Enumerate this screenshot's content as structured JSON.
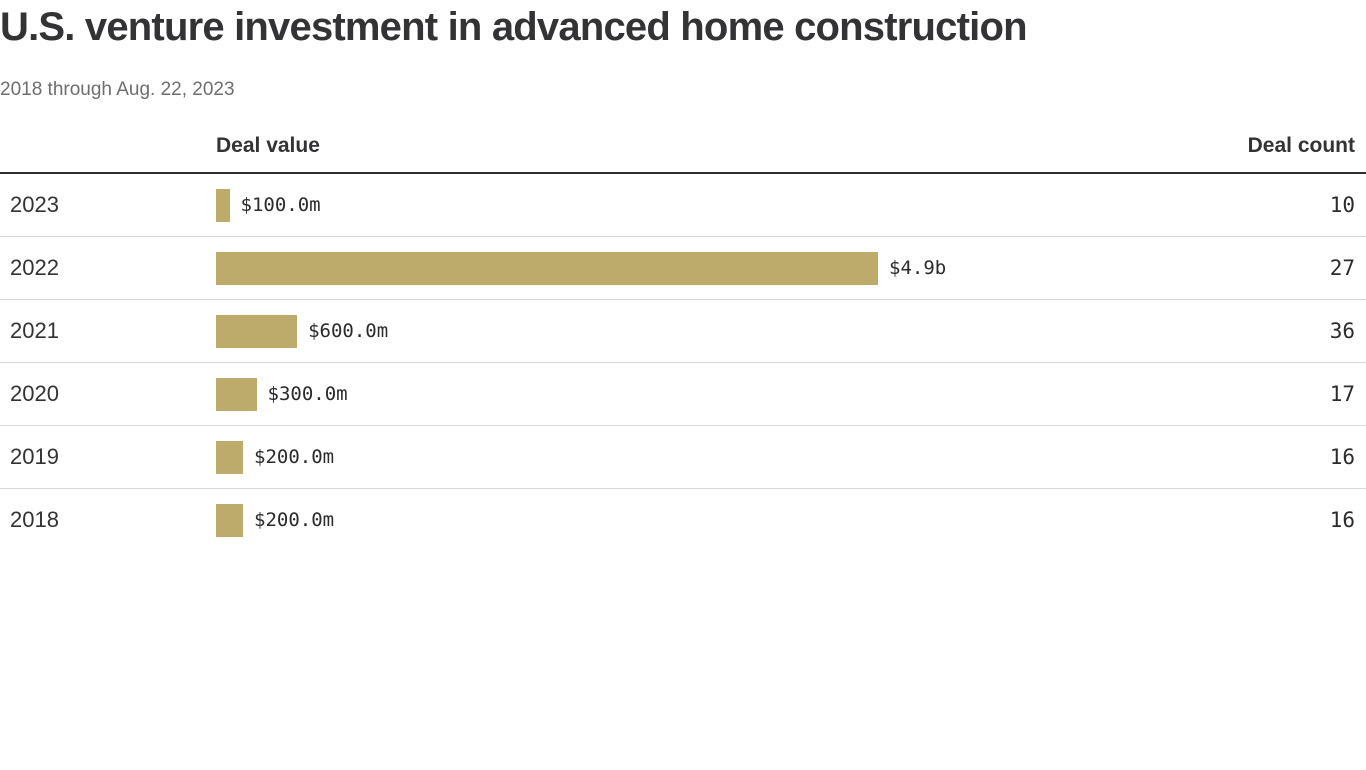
{
  "header": {
    "title": "U.S. venture investment in advanced home construction",
    "subtitle": "2018 through Aug. 22, 2023"
  },
  "table": {
    "deal_value_header": "Deal value",
    "deal_count_header": "Deal count"
  },
  "chart_data": {
    "type": "bar",
    "orientation": "horizontal",
    "title": "U.S. venture investment in advanced home construction",
    "subtitle": "2018 through Aug. 22, 2023",
    "categories": [
      "2023",
      "2022",
      "2021",
      "2020",
      "2019",
      "2018"
    ],
    "series": [
      {
        "name": "Deal value ($ millions)",
        "values": [
          100,
          4900,
          600,
          300,
          200,
          200
        ]
      },
      {
        "name": "Deal count",
        "values": [
          10,
          27,
          36,
          17,
          16,
          16
        ]
      }
    ],
    "value_labels": [
      "$100.0m",
      "$4.9b",
      "$600.0m",
      "$300.0m",
      "$200.0m",
      "$200.0m"
    ],
    "xlim": [
      0,
      4900
    ],
    "grid": false,
    "legend": false,
    "bar_color": "#bcab6b"
  },
  "colors": {
    "bar": "#bcab6b",
    "title_text": "#333335",
    "subtitle_text": "#6e6e6e",
    "header_rule": "#2e2e2e",
    "row_rule": "#d9d9d9",
    "value_text": "#2b2b2b"
  }
}
